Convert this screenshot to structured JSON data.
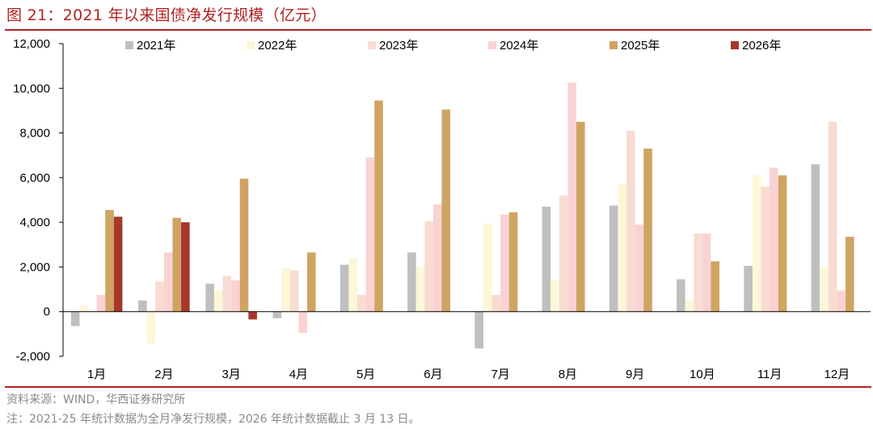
{
  "header": {
    "title": "图 21：2021 年以来国债净发行规模（亿元）"
  },
  "footer": {
    "source": "资料来源：WIND，华西证券研究所",
    "note": "注：2021-25 年统计数据为全月净发行规模，2026 年统计数据截止 3 月 13 日。"
  },
  "chart_data": {
    "type": "bar",
    "title": "2021 年以来国债净发行规模（亿元）",
    "xlabel": "",
    "ylabel": "",
    "ylim": [
      -2000,
      12000
    ],
    "yticks": [
      -2000,
      0,
      2000,
      4000,
      6000,
      8000,
      10000,
      12000
    ],
    "ytick_labels": [
      "-2,000",
      "0",
      "2,000",
      "4,000",
      "6,000",
      "8,000",
      "10,000",
      "12,000"
    ],
    "grid": false,
    "legend_position": "top",
    "categories": [
      "1月",
      "2月",
      "3月",
      "4月",
      "5月",
      "6月",
      "7月",
      "8月",
      "9月",
      "10月",
      "11月",
      "12月"
    ],
    "series": [
      {
        "name": "2021年",
        "color": "#bfbfbf",
        "values": [
          -650,
          500,
          1250,
          -300,
          2100,
          2650,
          -1650,
          4700,
          4750,
          1450,
          2050,
          6600
        ]
      },
      {
        "name": "2022年",
        "color": "#fbf7d8",
        "values": [
          250,
          -1450,
          950,
          1950,
          2400,
          2000,
          3950,
          1400,
          5700,
          500,
          6100,
          2000
        ]
      },
      {
        "name": "2023年",
        "color": "#f8dcd2",
        "values": [
          0,
          1350,
          1600,
          1850,
          750,
          4050,
          750,
          5200,
          8100,
          3500,
          5600,
          8500
        ]
      },
      {
        "name": "2024年",
        "color": "#f9d3d3",
        "values": [
          750,
          2650,
          1400,
          -950,
          6900,
          4800,
          4350,
          10250,
          3900,
          3500,
          6450,
          950
        ]
      },
      {
        "name": "2025年",
        "color": "#cfa463",
        "values": [
          4550,
          4200,
          5950,
          2650,
          9450,
          9050,
          4450,
          8500,
          7300,
          2250,
          6100,
          3350
        ]
      },
      {
        "name": "2026年",
        "color": "#a8372b",
        "values": [
          4250,
          4000,
          -350,
          null,
          null,
          null,
          null,
          null,
          null,
          null,
          null,
          null
        ]
      }
    ]
  }
}
